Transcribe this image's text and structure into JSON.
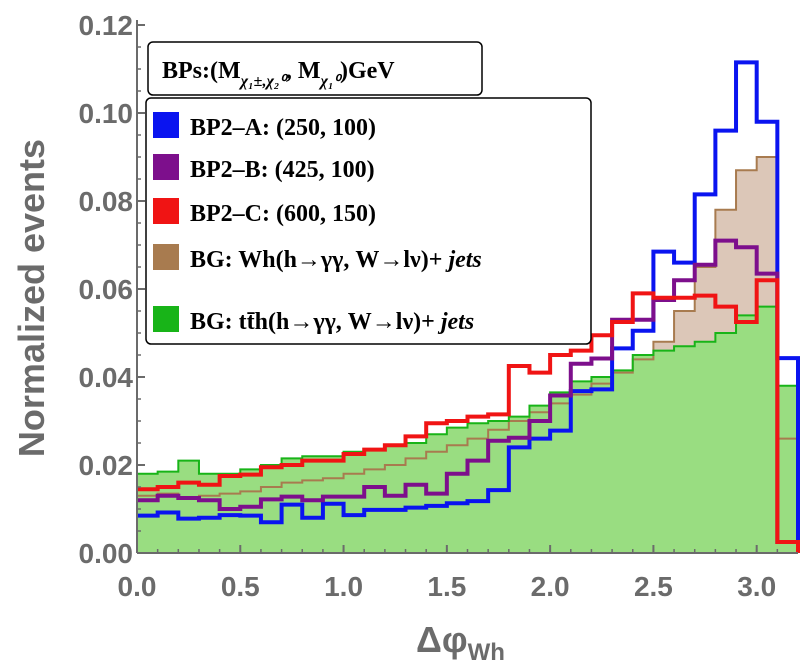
{
  "chart_data": {
    "type": "histogram",
    "xlabel": "Δφ",
    "xlabel_sub": "Wh",
    "ylabel": "Normalized events",
    "xlim": [
      0,
      3.2
    ],
    "ylim": [
      0,
      0.12
    ],
    "bin_width": 0.1,
    "x_ticks": [
      "0.0",
      "0.5",
      "1.0",
      "1.5",
      "2.0",
      "2.5",
      "3.0"
    ],
    "y_ticks": [
      "0.00",
      "0.02",
      "0.04",
      "0.06",
      "0.08",
      "0.10",
      "0.12"
    ],
    "legend_header": {
      "prefix": "BPs:(M",
      "sub1": "χ₁±,χ₂⁰",
      "mid": ", M",
      "sub2": "χ₁⁰",
      "suffix": ")GeV"
    },
    "legend_labels": [
      {
        "plain": "BP2–A: (250, 100)",
        "ital": ""
      },
      {
        "plain": "BP2–B: (425, 100)",
        "ital": ""
      },
      {
        "plain": "BP2–C: (600, 150)",
        "ital": ""
      },
      {
        "plain": "BG:  Wh(h→γγ, W→lν)+ ",
        "ital": "jets"
      },
      {
        "plain": "BG: tt̄h(h→γγ, W→lν)+ ",
        "ital": "jets"
      }
    ],
    "series": [
      {
        "name": "BP2-A: (250, 100)",
        "color": "#0a14f0",
        "fill": "none",
        "values": [
          0.0085,
          0.0092,
          0.0078,
          0.008,
          0.0086,
          0.0085,
          0.007,
          0.011,
          0.008,
          0.0112,
          0.0086,
          0.0098,
          0.0098,
          0.0103,
          0.0107,
          0.0113,
          0.0118,
          0.0143,
          0.024,
          0.026,
          0.0278,
          0.0368,
          0.0372,
          0.0465,
          0.0505,
          0.0685,
          0.066,
          0.0815,
          0.096,
          0.1115,
          0.098,
          0.0443
        ]
      },
      {
        "name": "BP2-B: (425, 100)",
        "color": "#7d0f8c",
        "fill": "none",
        "values": [
          0.012,
          0.013,
          0.0125,
          0.012,
          0.01,
          0.0105,
          0.0122,
          0.0128,
          0.012,
          0.0128,
          0.0128,
          0.015,
          0.013,
          0.0155,
          0.0135,
          0.018,
          0.021,
          0.0255,
          0.0262,
          0.03,
          0.0358,
          0.043,
          0.0442,
          0.053,
          0.053,
          0.0575,
          0.062,
          0.0655,
          0.071,
          0.0695,
          0.0635,
          0.0025
        ]
      },
      {
        "name": "BP2-C: (600, 150)",
        "color": "#f01414",
        "fill": "none",
        "values": [
          0.0145,
          0.015,
          0.016,
          0.0155,
          0.0175,
          0.0178,
          0.0195,
          0.02,
          0.021,
          0.021,
          0.0225,
          0.0235,
          0.0245,
          0.0265,
          0.0295,
          0.03,
          0.031,
          0.0315,
          0.0425,
          0.041,
          0.045,
          0.046,
          0.0495,
          0.0525,
          0.059,
          0.058,
          0.058,
          0.0585,
          0.056,
          0.0525,
          0.062,
          0.0025
        ]
      },
      {
        "name": "BG: Wh(h→γγ, W→lν)+jets",
        "color": "#a87b4f",
        "fill": "#dcc7b8",
        "values": [
          0.013,
          0.0135,
          0.0125,
          0.013,
          0.0135,
          0.014,
          0.015,
          0.016,
          0.0165,
          0.017,
          0.018,
          0.019,
          0.02,
          0.0215,
          0.023,
          0.0245,
          0.026,
          0.028,
          0.03,
          0.032,
          0.034,
          0.036,
          0.0385,
          0.041,
          0.044,
          0.048,
          0.055,
          0.065,
          0.078,
          0.087,
          0.09,
          0.026
        ]
      },
      {
        "name": "BG: tt̄h(h→γγ, W→lν)+jets",
        "color": "#18b418",
        "fill": "#99dd81",
        "values": [
          0.018,
          0.0185,
          0.021,
          0.018,
          0.018,
          0.019,
          0.02,
          0.0215,
          0.022,
          0.022,
          0.023,
          0.0235,
          0.0245,
          0.025,
          0.027,
          0.0285,
          0.0295,
          0.03,
          0.031,
          0.0335,
          0.0365,
          0.039,
          0.04,
          0.0415,
          0.045,
          0.046,
          0.047,
          0.048,
          0.05,
          0.054,
          0.056,
          0.038
        ]
      }
    ],
    "legend_position": "top-left"
  }
}
